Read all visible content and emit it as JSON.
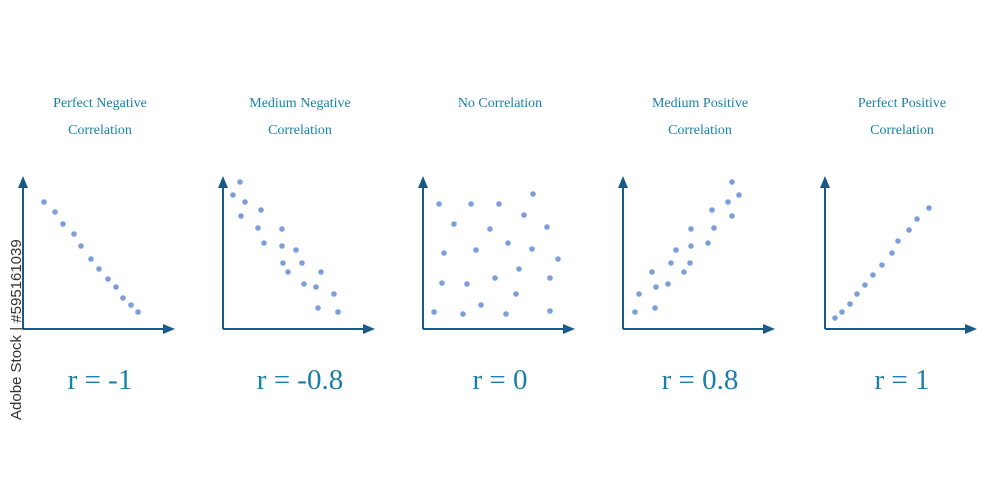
{
  "watermark": "Adobe Stock | #595161039",
  "colors": {
    "axis": "#1a5a86",
    "dot": "#7b9fd6",
    "text": "#1b7fa8"
  },
  "chart_data": [
    {
      "type": "scatter",
      "title_lines": [
        "Perfect Negative",
        "Correlation"
      ],
      "label": "r = -1",
      "points": [
        [
          21,
          127
        ],
        [
          32,
          117
        ],
        [
          40,
          105
        ],
        [
          51,
          95
        ],
        [
          58,
          83
        ],
        [
          68,
          70
        ],
        [
          76,
          60
        ],
        [
          85,
          50
        ],
        [
          93,
          42
        ],
        [
          100,
          31
        ],
        [
          108,
          24
        ],
        [
          115,
          17
        ]
      ]
    },
    {
      "type": "scatter",
      "title_lines": [
        "Medium Negative",
        "Correlation"
      ],
      "label": "r = -0.8",
      "points": [
        [
          17,
          147
        ],
        [
          10,
          134
        ],
        [
          22,
          127
        ],
        [
          18,
          113
        ],
        [
          38,
          119
        ],
        [
          35,
          101
        ],
        [
          41,
          86
        ],
        [
          59,
          100
        ],
        [
          59,
          83
        ],
        [
          73,
          79
        ],
        [
          60,
          66
        ],
        [
          79,
          66
        ],
        [
          65,
          57
        ],
        [
          98,
          57
        ],
        [
          81,
          45
        ],
        [
          93,
          42
        ],
        [
          111,
          35
        ],
        [
          95,
          21
        ],
        [
          115,
          17
        ]
      ]
    },
    {
      "type": "scatter",
      "title_lines": [
        "No Correlation",
        ""
      ],
      "label": "r = 0",
      "points": [
        [
          110,
          135
        ],
        [
          16,
          125
        ],
        [
          48,
          125
        ],
        [
          76,
          125
        ],
        [
          101,
          114
        ],
        [
          31,
          105
        ],
        [
          67,
          100
        ],
        [
          124,
          102
        ],
        [
          85,
          86
        ],
        [
          21,
          76
        ],
        [
          53,
          79
        ],
        [
          109,
          80
        ],
        [
          135,
          70
        ],
        [
          96,
          60
        ],
        [
          19,
          46
        ],
        [
          44,
          45
        ],
        [
          72,
          51
        ],
        [
          127,
          51
        ],
        [
          93,
          35
        ],
        [
          58,
          24
        ],
        [
          11,
          17
        ],
        [
          40,
          15
        ],
        [
          83,
          15
        ],
        [
          127,
          18
        ]
      ]
    },
    {
      "type": "scatter",
      "title_lines": [
        "Medium Positive",
        "Correlation"
      ],
      "label": "r = 0.8",
      "points": [
        [
          109,
          147
        ],
        [
          116,
          134
        ],
        [
          105,
          127
        ],
        [
          109,
          113
        ],
        [
          89,
          119
        ],
        [
          91,
          101
        ],
        [
          85,
          86
        ],
        [
          68,
          100
        ],
        [
          68,
          83
        ],
        [
          53,
          79
        ],
        [
          48,
          66
        ],
        [
          67,
          66
        ],
        [
          29,
          57
        ],
        [
          61,
          57
        ],
        [
          33,
          42
        ],
        [
          45,
          45
        ],
        [
          16,
          35
        ],
        [
          32,
          21
        ],
        [
          12,
          17
        ]
      ]
    },
    {
      "type": "scatter",
      "title_lines": [
        "Perfect Positive",
        "Correlation"
      ],
      "label": "r = 1",
      "points": [
        [
          10,
          11
        ],
        [
          17,
          17
        ],
        [
          25,
          25
        ],
        [
          32,
          35
        ],
        [
          40,
          44
        ],
        [
          48,
          54
        ],
        [
          57,
          64
        ],
        [
          67,
          76
        ],
        [
          73,
          88
        ],
        [
          84,
          99
        ],
        [
          92,
          110
        ],
        [
          104,
          121
        ]
      ]
    }
  ]
}
